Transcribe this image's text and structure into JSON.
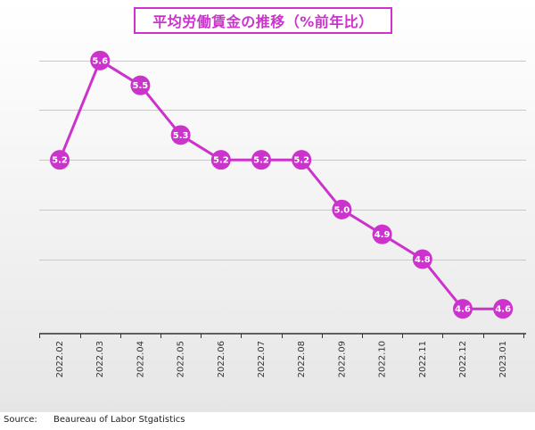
{
  "chart_data": {
    "type": "line",
    "title": "平均労働賃金の推移（%前年比）",
    "xlabel": "",
    "ylabel": "",
    "categories": [
      "2022.02",
      "2022.03",
      "2022.04",
      "2022.05",
      "2022.06",
      "2022.07",
      "2022.08",
      "2022.09",
      "2022.10",
      "2022.11",
      "2022.12",
      "2023.01"
    ],
    "series": [
      {
        "values": [
          5.2,
          5.6,
          5.5,
          5.3,
          5.2,
          5.2,
          5.2,
          5.0,
          4.9,
          4.8,
          4.6,
          4.6
        ],
        "labels": [
          "5.2",
          "5.6",
          "5.5",
          "5.3",
          "5.2",
          "5.2",
          "5.2",
          "5.0",
          "4.9",
          "4.8",
          "4.6",
          "4.6"
        ]
      }
    ],
    "ylim": [
      4.5,
      5.7
    ],
    "y_gridlines": [
      4.8,
      5.0,
      5.2,
      5.4,
      5.6
    ],
    "grid": true,
    "legend": "none",
    "data_labels": true,
    "line_color": "#cc33cc",
    "axis_color": "#333333"
  },
  "source": {
    "prefix": "Source:",
    "text": "Beaureau of Labor Stgatistics"
  }
}
